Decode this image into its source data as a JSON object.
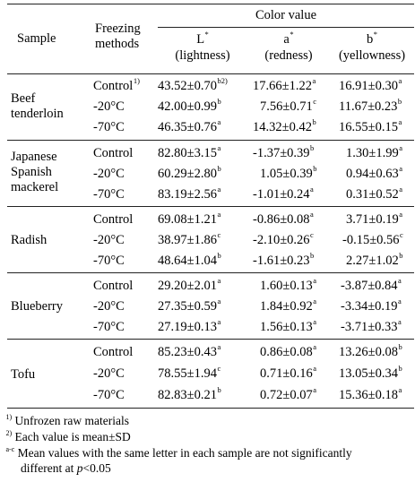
{
  "header": {
    "sample": "Sample",
    "freezing_line1": "Freezing",
    "freezing_line2": "methods",
    "color_value": "Color value",
    "L_symbol": "L",
    "L_sup": "*",
    "L_desc": "(lightness)",
    "a_symbol": "a",
    "a_sup": "*",
    "a_desc": "(redness)",
    "b_symbol": "b",
    "b_sup": "*",
    "b_desc": "(yellowness)"
  },
  "samples": [
    {
      "name_lines": [
        "Beef",
        "tenderloin"
      ],
      "rows": [
        {
          "method": "Control",
          "method_sup": "1)",
          "L": "43.52±0.70",
          "L_sup": "b2)",
          "a": "17.66±1.22",
          "a_sup": "a",
          "b": "16.91±0.30",
          "b_sup": "a"
        },
        {
          "method": "-20°C",
          "method_sup": "",
          "L": "42.00±0.99",
          "L_sup": "b",
          "a": "7.56±0.71",
          "a_sup": "c",
          "b": "11.67±0.23",
          "b_sup": "b"
        },
        {
          "method": "-70°C",
          "method_sup": "",
          "L": "46.35±0.76",
          "L_sup": "a",
          "a": "14.32±0.42",
          "a_sup": "b",
          "b": "16.55±0.15",
          "b_sup": "a"
        }
      ]
    },
    {
      "name_lines": [
        "Japanese",
        "Spanish",
        "mackerel"
      ],
      "rows": [
        {
          "method": "Control",
          "method_sup": "",
          "L": "82.80±3.15",
          "L_sup": "a",
          "a": "-1.37±0.39",
          "a_sup": "b",
          "b": "1.30±1.99",
          "b_sup": "a"
        },
        {
          "method": "-20°C",
          "method_sup": "",
          "L": "60.29±2.80",
          "L_sup": "b",
          "a": "1.05±0.39",
          "a_sup": "b",
          "b": "0.94±0.63",
          "b_sup": "a"
        },
        {
          "method": "-70°C",
          "method_sup": "",
          "L": "83.19±2.56",
          "L_sup": "a",
          "a": "-1.01±0.24",
          "a_sup": "a",
          "b": "0.31±0.52",
          "b_sup": "a"
        }
      ]
    },
    {
      "name_lines": [
        "Radish"
      ],
      "rows": [
        {
          "method": "Control",
          "method_sup": "",
          "L": "69.08±1.21",
          "L_sup": "a",
          "a": "-0.86±0.08",
          "a_sup": "a",
          "b": "3.71±0.19",
          "b_sup": "a"
        },
        {
          "method": "-20°C",
          "method_sup": "",
          "L": "38.97±1.86",
          "L_sup": "c",
          "a": "-2.10±0.26",
          "a_sup": "c",
          "b": "-0.15±0.56",
          "b_sup": "c"
        },
        {
          "method": "-70°C",
          "method_sup": "",
          "L": "48.64±1.04",
          "L_sup": "b",
          "a": "-1.61±0.23",
          "a_sup": "b",
          "b": "2.27±1.02",
          "b_sup": "b"
        }
      ]
    },
    {
      "name_lines": [
        "Blueberry"
      ],
      "rows": [
        {
          "method": "Control",
          "method_sup": "",
          "L": "29.20±2.01",
          "L_sup": "a",
          "a": "1.60±0.13",
          "a_sup": "a",
          "b": "-3.87±0.84",
          "b_sup": "a"
        },
        {
          "method": "-20°C",
          "method_sup": "",
          "L": "27.35±0.59",
          "L_sup": "a",
          "a": "1.84±0.92",
          "a_sup": "a",
          "b": "-3.34±0.19",
          "b_sup": "a"
        },
        {
          "method": "-70°C",
          "method_sup": "",
          "L": "27.19±0.13",
          "L_sup": "a",
          "a": "1.56±0.13",
          "a_sup": "a",
          "b": "-3.71±0.33",
          "b_sup": "a"
        }
      ]
    },
    {
      "name_lines": [
        "Tofu"
      ],
      "rows": [
        {
          "method": "Control",
          "method_sup": "",
          "L": "85.23±0.43",
          "L_sup": "a",
          "a": "0.86±0.08",
          "a_sup": "a",
          "b": "13.26±0.08",
          "b_sup": "b"
        },
        {
          "method": "-20°C",
          "method_sup": "",
          "L": "78.55±1.94",
          "L_sup": "c",
          "a": "0.71±0.16",
          "a_sup": "a",
          "b": "13.05±0.34",
          "b_sup": "b"
        },
        {
          "method": "-70°C",
          "method_sup": "",
          "L": "82.83±0.21",
          "L_sup": "b",
          "a": "0.72±0.07",
          "a_sup": "a",
          "b": "15.36±0.18",
          "b_sup": "a"
        }
      ]
    }
  ],
  "footnotes": {
    "fn1_mark": "1)",
    "fn1_text": "Unfrozen raw materials",
    "fn2_mark": "2)",
    "fn2_text": "Each value is mean±SD",
    "fn3_mark": "a-c",
    "fn3_text_line1": "Mean values with the same letter in each sample are not significantly",
    "fn3_text_line2_pre": "different at ",
    "fn3_text_line2_p": "p",
    "fn3_text_line2_post": "<0.05"
  }
}
